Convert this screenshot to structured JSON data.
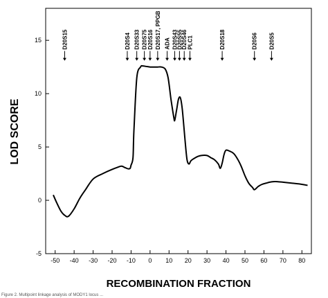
{
  "chart_data": {
    "type": "line",
    "xlabel": "RECOMBINATION FRACTION",
    "ylabel": "LOD SCORE",
    "xlim": [
      -55,
      85
    ],
    "ylim": [
      -5,
      18
    ],
    "xticks": [
      -50,
      -40,
      -30,
      -20,
      -10,
      0,
      10,
      20,
      30,
      40,
      50,
      60,
      70,
      80
    ],
    "yticks": [
      -5,
      0,
      5,
      10,
      15
    ],
    "grid": false,
    "series": [
      {
        "x": [
          -51,
          -49,
          -47,
          -45,
          -43,
          -40,
          -37,
          -34,
          -30,
          -25,
          -20,
          -17,
          -15,
          -13,
          -11.5,
          -10.5,
          -10,
          -9,
          -8.5,
          -7,
          -5,
          -4,
          -2,
          0,
          2,
          4,
          6,
          8,
          9.5,
          11,
          12.5,
          13,
          14,
          15,
          16,
          17,
          18.5,
          19.5,
          20.5,
          21.5,
          23,
          25,
          27,
          30,
          32,
          34,
          36,
          37,
          38,
          39,
          40,
          42,
          44,
          46,
          48,
          50,
          52,
          54,
          55,
          57,
          59,
          61,
          63,
          65,
          67,
          70,
          75,
          80,
          83
        ],
        "y": [
          0.5,
          -0.3,
          -1.0,
          -1.4,
          -1.5,
          -0.8,
          0.2,
          1.0,
          2.0,
          2.5,
          2.9,
          3.1,
          3.2,
          3.05,
          2.95,
          3.0,
          3.3,
          4.0,
          6.5,
          11.5,
          12.5,
          12.6,
          12.55,
          12.5,
          12.5,
          12.5,
          12.5,
          12.3,
          11.5,
          9.5,
          7.8,
          7.5,
          8.5,
          9.5,
          9.6,
          8.5,
          5.5,
          3.8,
          3.4,
          3.7,
          3.9,
          4.1,
          4.2,
          4.2,
          4.0,
          3.8,
          3.4,
          3.0,
          3.5,
          4.3,
          4.7,
          4.6,
          4.4,
          3.9,
          3.2,
          2.3,
          1.6,
          1.2,
          1.0,
          1.3,
          1.5,
          1.6,
          1.7,
          1.75,
          1.75,
          1.7,
          1.6,
          1.5,
          1.4
        ]
      }
    ],
    "markers": [
      {
        "label": "D20S15",
        "x": -45
      },
      {
        "label": "D20S4",
        "x": -12
      },
      {
        "label": "D20S33",
        "x": -7
      },
      {
        "label": "D20S75",
        "x": -3
      },
      {
        "label": "D20S16",
        "x": 0
      },
      {
        "label": "D20S17, PPGB",
        "x": 4
      },
      {
        "label": "ADA",
        "x": 9
      },
      {
        "label": "D20S43",
        "x": 13
      },
      {
        "label": "D20S55",
        "x": 15.5
      },
      {
        "label": "D20S46",
        "x": 18
      },
      {
        "label": "PLC1",
        "x": 21
      },
      {
        "label": "D20S18",
        "x": 38
      },
      {
        "label": "D20S6",
        "x": 55
      },
      {
        "label": "D20S5",
        "x": 64
      }
    ]
  },
  "footer_text": "Figure 2. Multipoint linkage analysis of MODY1 locus ... "
}
